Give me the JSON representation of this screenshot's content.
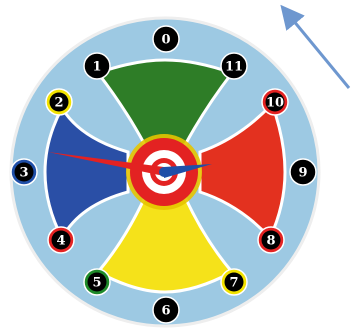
{
  "board": {
    "positions": [
      {
        "label": "0",
        "ring_color": "#000000"
      },
      {
        "label": "1",
        "ring_color": "#000000"
      },
      {
        "label": "2",
        "ring_color": "#f2e200"
      },
      {
        "label": "3",
        "ring_color": "#1f4fa8"
      },
      {
        "label": "4",
        "ring_color": "#e32222"
      },
      {
        "label": "5",
        "ring_color": "#1e8a2a"
      },
      {
        "label": "6",
        "ring_color": "#000000"
      },
      {
        "label": "7",
        "ring_color": "#f2e200"
      },
      {
        "label": "8",
        "ring_color": "#e32222"
      },
      {
        "label": "9",
        "ring_color": "#000000"
      },
      {
        "label": "10",
        "ring_color": "#e32222"
      },
      {
        "label": "11",
        "ring_color": "#000000"
      }
    ],
    "colors": {
      "board_fill": "#9dc9e3",
      "rim": "#eeeeee",
      "top_sector": "#2e7d27",
      "bottom_sector": "#f5e21a",
      "left_sector": "#2a4fa6",
      "right_sector": "#e3311f",
      "hub_ring": "#e32222",
      "hub_center": "#ffffff",
      "hand": "#1f4fa8",
      "number_text": "#ffffff",
      "direction_arrow": "#6e97cf"
    },
    "icons": [
      "spinner-hand-icon",
      "direction-arrow-icon"
    ]
  }
}
